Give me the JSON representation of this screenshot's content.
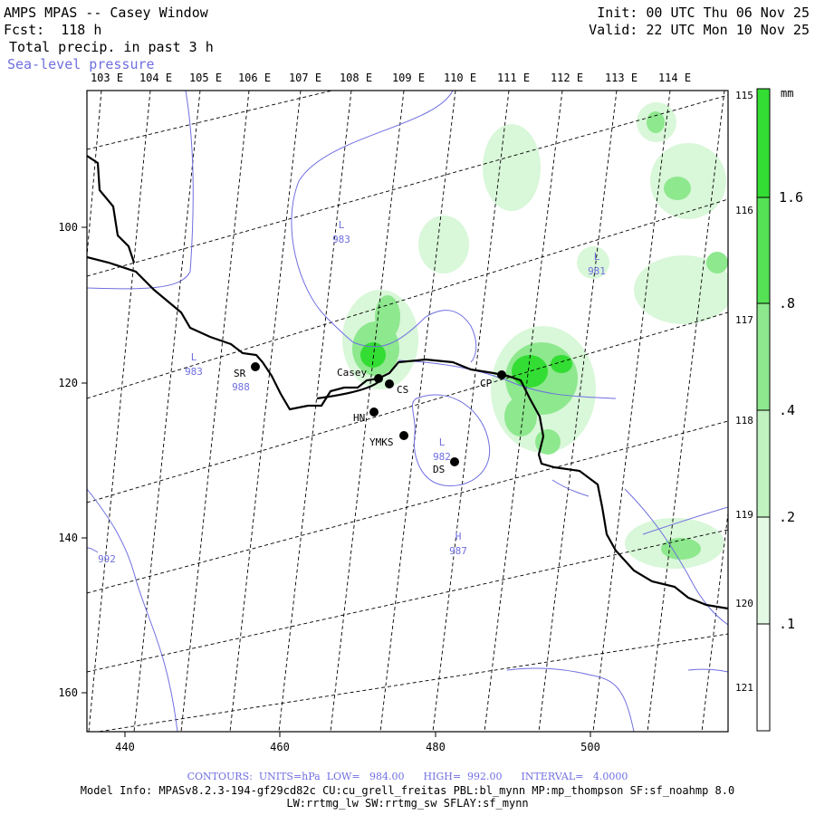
{
  "header": {
    "title": "AMPS MPAS -- Casey Window",
    "forecast": "Fcst:  118 h",
    "field": "Total precip. in past 3 h",
    "overlay": "Sea-level pressure",
    "init": "Init: 00 UTC Thu 06 Nov 25",
    "valid": "Valid: 22 UTC Mon 10 Nov 25"
  },
  "colors": {
    "slp_contour": "#6f6fe0",
    "coast": "#000000",
    "precip_light": "#d9f7d9",
    "precip_mid": "#8ee88e",
    "precip_heavy": "#33dd33"
  },
  "top_lon_labels": [
    "103 E",
    "104 E",
    "105 E",
    "106 E",
    "107 E",
    "108 E",
    "109 E",
    "110 E",
    "111 E",
    "112 E",
    "113 E",
    "114 E"
  ],
  "right_lon_labels": [
    "115 E",
    "116 E",
    "117 E",
    "118 E",
    "119 E",
    "120 E",
    "121 E"
  ],
  "x_axis_ticks": [
    "440",
    "460",
    "480",
    "500"
  ],
  "y_axis_ticks": [
    "100",
    "120",
    "140",
    "160"
  ],
  "stations": [
    {
      "name": "SR"
    },
    {
      "name": "Casey"
    },
    {
      "name": "CS"
    },
    {
      "name": "HN"
    },
    {
      "name": "YMKS"
    },
    {
      "name": "DS"
    },
    {
      "name": "CP"
    }
  ],
  "pressure_labels": [
    {
      "kind": "L",
      "value": "983"
    },
    {
      "kind": "L",
      "value": "981"
    },
    {
      "kind": "L",
      "value": "983"
    },
    {
      "kind": "",
      "value": "988"
    },
    {
      "kind": "L",
      "value": "982"
    },
    {
      "kind": "H",
      "value": "987"
    },
    {
      "kind": "",
      "value": "992"
    }
  ],
  "colorbar": {
    "unit": "mm",
    "labels": [
      "1.6",
      ".8",
      ".4",
      ".2",
      ".1"
    ]
  },
  "footer": {
    "contours": "CONTOURS:  UNITS=hPa  LOW=   984.00      HIGH=  992.00      INTERVAL=   4.0000",
    "model_info": "Model Info: MPASv8.2.3-194-gf29cd82c CU:cu_grell_freitas PBL:bl_mynn MP:mp_thompson SF:sf_noahmp 8.0",
    "model_info2": "LW:rrtmg_lw SW:rrtmg_sw SFLAY:sf_mynn"
  }
}
